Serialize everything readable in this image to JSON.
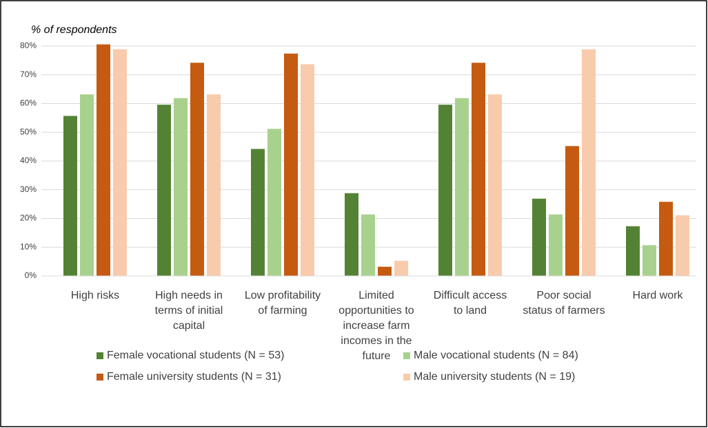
{
  "chart_data": {
    "type": "bar",
    "y_axis_label": "% of respondents",
    "categories": [
      "High risks",
      "High needs in terms of initial capital",
      "Low profitability of farming",
      "Limited opportunities to increase farm incomes in the future",
      "Difficult access to land",
      "Poor social status of farmers",
      "Hard work"
    ],
    "series": [
      {
        "name": "Female vocational students (N = 53)",
        "color": "#548235",
        "values": [
          55.7,
          59.6,
          44.2,
          28.8,
          59.6,
          26.9,
          17.3
        ]
      },
      {
        "name": "Male vocational students (N = 84)",
        "color": "#a9d18e",
        "values": [
          63.2,
          61.9,
          51.2,
          21.4,
          61.9,
          21.4,
          10.7
        ]
      },
      {
        "name": "Female university students (N = 31)",
        "color": "#c55a11",
        "values": [
          80.6,
          74.2,
          77.4,
          3.2,
          74.2,
          45.2,
          25.8
        ]
      },
      {
        "name": "Male university students (N = 19)",
        "color": "#f8cbad",
        "values": [
          78.9,
          63.2,
          73.7,
          5.3,
          63.2,
          78.9,
          21.1
        ]
      }
    ],
    "ylim": [
      0,
      80
    ],
    "yticks": [
      {
        "value": 0,
        "label": "0%"
      },
      {
        "value": 10,
        "label": "10%"
      },
      {
        "value": 20,
        "label": "20%"
      },
      {
        "value": 30,
        "label": "30%"
      },
      {
        "value": 40,
        "label": "40%"
      },
      {
        "value": 50,
        "label": "50%"
      },
      {
        "value": 60,
        "label": "60%"
      },
      {
        "value": 70,
        "label": "70%"
      },
      {
        "value": 80,
        "label": "80%"
      }
    ],
    "grid": true,
    "legend": "bottom"
  }
}
